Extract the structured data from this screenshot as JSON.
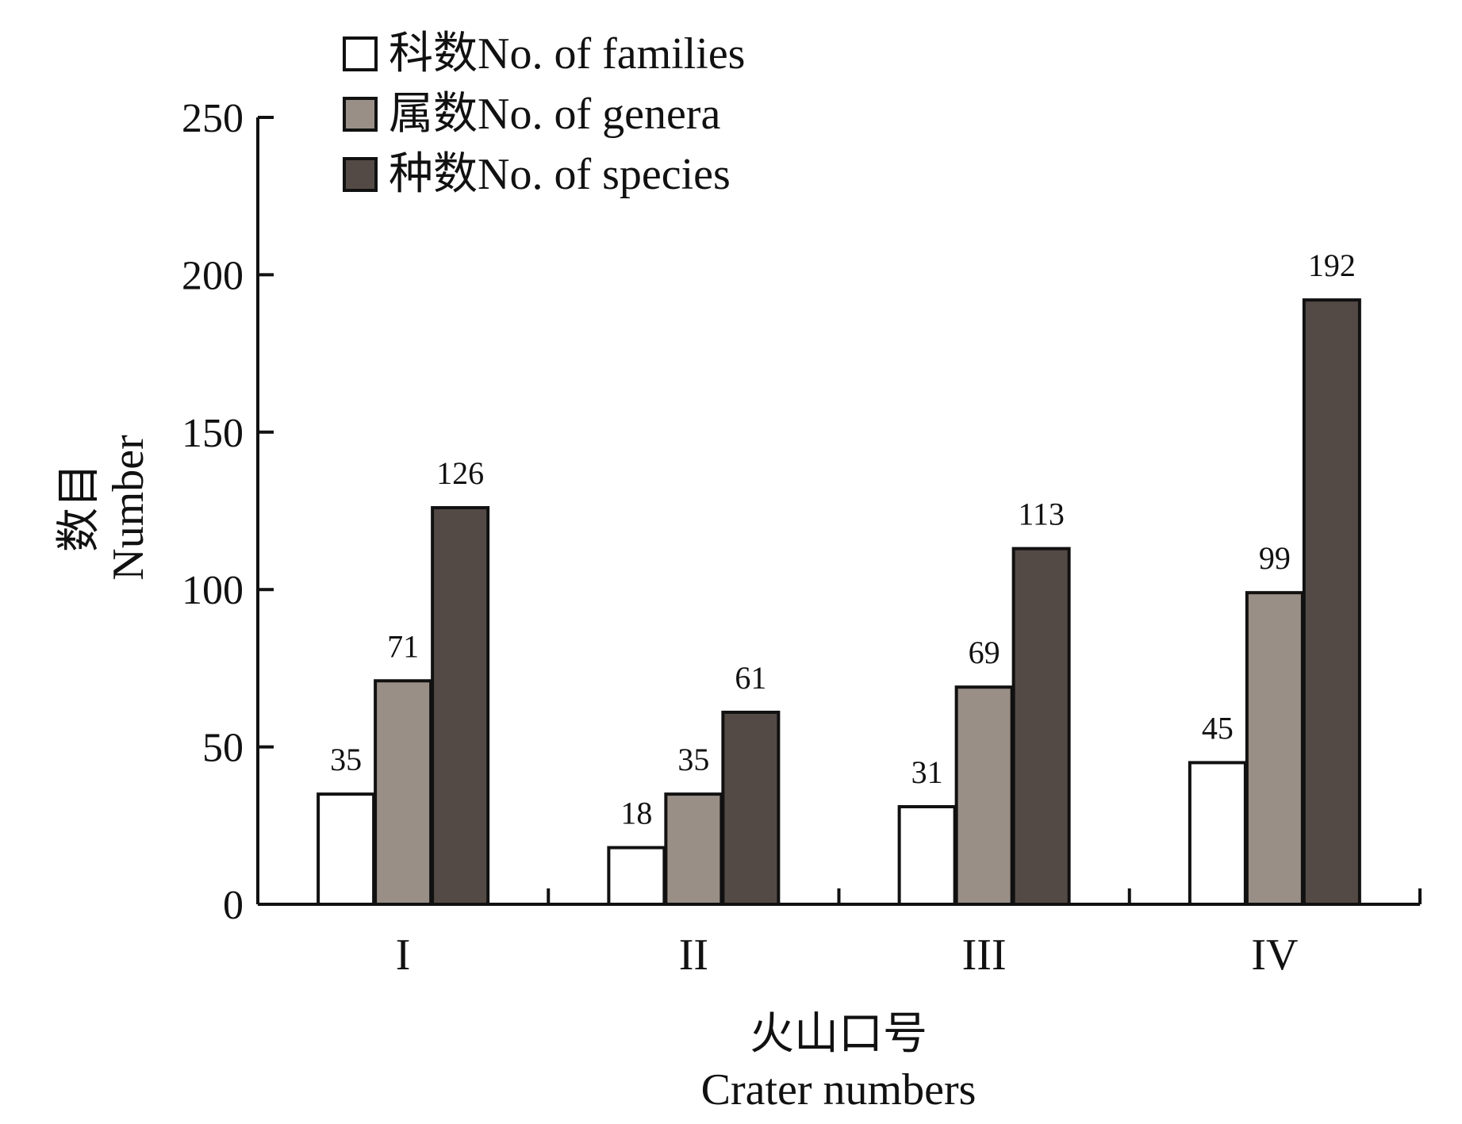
{
  "chart_data": {
    "type": "bar",
    "categories": [
      "I",
      "II",
      "III",
      "IV"
    ],
    "series": [
      {
        "name": "科数No. of families",
        "values": [
          35,
          18,
          31,
          45
        ],
        "color": "#ffffff"
      },
      {
        "name": "属数No. of genera",
        "values": [
          71,
          35,
          69,
          99
        ],
        "color": "#9a8f86"
      },
      {
        "name": "种数No. of species",
        "values": [
          126,
          61,
          113,
          192
        ],
        "color": "#544a45"
      }
    ],
    "ylim": [
      0,
      250
    ],
    "yticks": [
      0,
      50,
      100,
      150,
      200,
      250
    ],
    "ylabel_line1": "数目",
    "ylabel_line2": "Number",
    "xlabel_line1": "火山口号",
    "xlabel_line2": "Crater numbers",
    "legend_position": "top-left",
    "grid": false,
    "data_labels": true
  }
}
